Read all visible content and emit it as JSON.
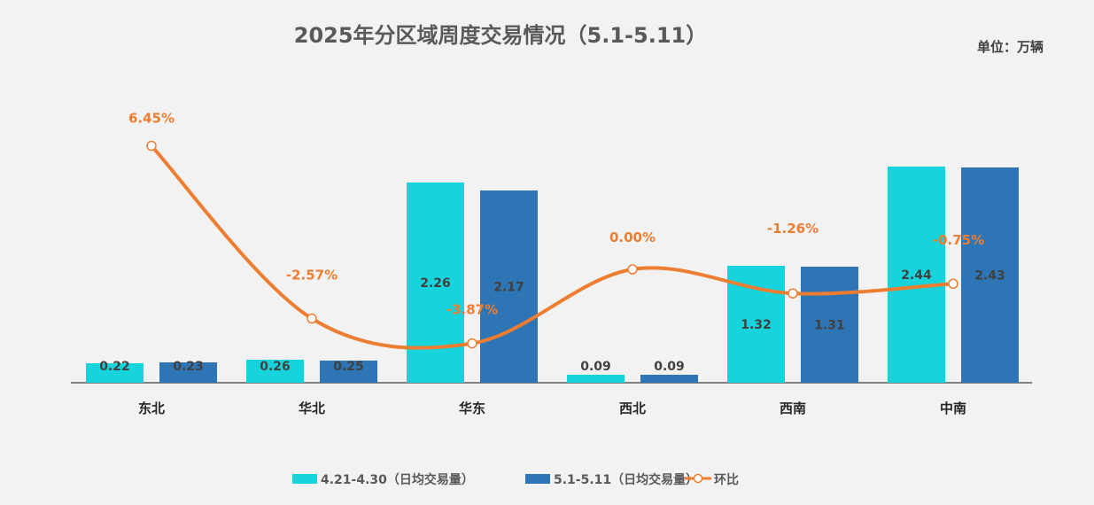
{
  "chart_data": {
    "type": "bar",
    "title": "2025年分区域周度交易情况（5.1-5.11）",
    "unit": "单位：万辆",
    "categories": [
      "东北",
      "华北",
      "华东",
      "西北",
      "西南",
      "中南"
    ],
    "series": [
      {
        "name": "4.21-4.30（日均交易量）",
        "type": "bar",
        "color": "#17d4dc",
        "values": [
          0.22,
          0.26,
          2.26,
          0.09,
          1.32,
          2.44
        ]
      },
      {
        "name": "5.1-5.11（日均交易量）",
        "type": "bar",
        "color": "#2e75b6",
        "values": [
          0.23,
          0.25,
          2.17,
          0.09,
          1.31,
          2.43
        ]
      },
      {
        "name": "环比",
        "type": "line",
        "axis": "secondary",
        "color": "#ed7d31",
        "values": [
          6.45,
          -2.57,
          -3.87,
          0.0,
          -1.26,
          -0.75
        ],
        "labels": [
          "6.45%",
          "-2.57%",
          "-3.87%",
          "0.00%",
          "-1.26%",
          "-0.75%"
        ]
      }
    ],
    "legend_position": "bottom",
    "grid": false
  }
}
